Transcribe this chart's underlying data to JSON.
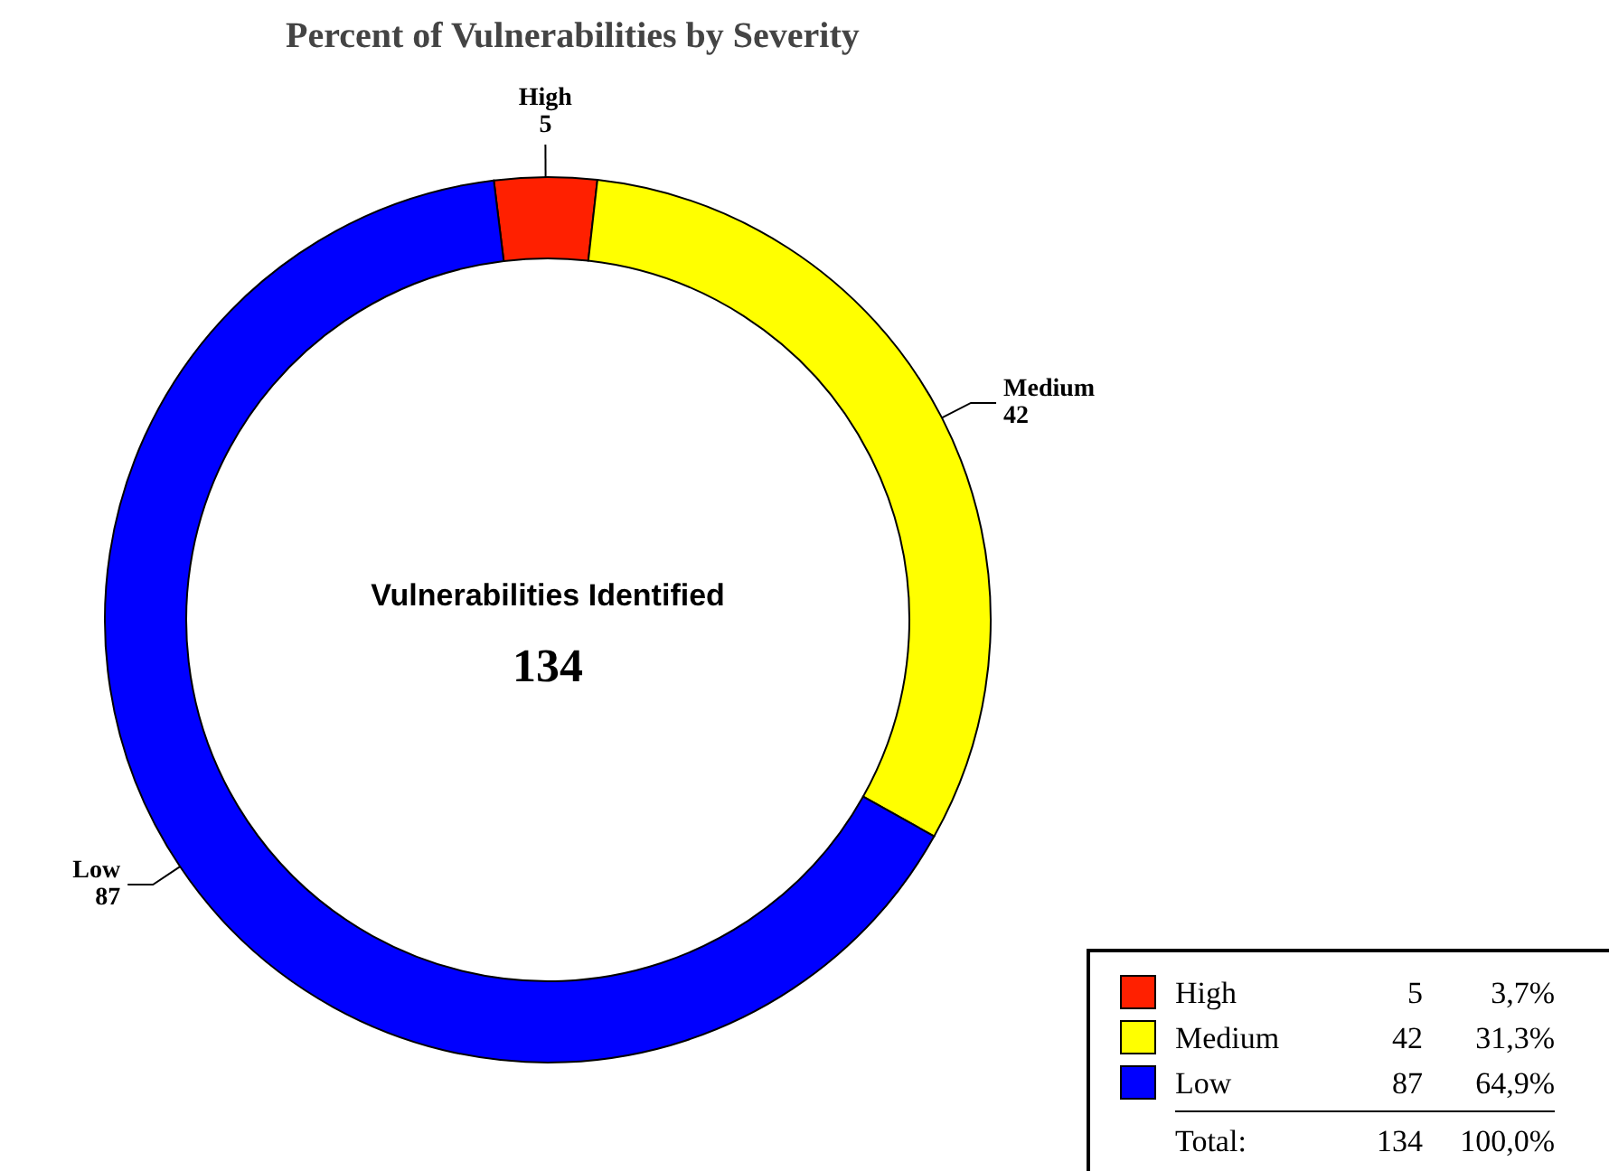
{
  "chart_data": {
    "type": "donut",
    "title": "Percent of Vulnerabilities by Severity",
    "categories": [
      "High",
      "Medium",
      "Low"
    ],
    "values": [
      5,
      42,
      87
    ],
    "colors": [
      "#ff2000",
      "#ffff00",
      "#0000ff"
    ],
    "data_labels": true,
    "legend": "bottom right",
    "annotations": [
      "Vulnerabilities Identified",
      "134",
      "Total:",
      "134",
      "100,0%",
      "3,7%",
      "31,3%",
      "64,9%",
      "5",
      "42",
      "87"
    ]
  }
}
